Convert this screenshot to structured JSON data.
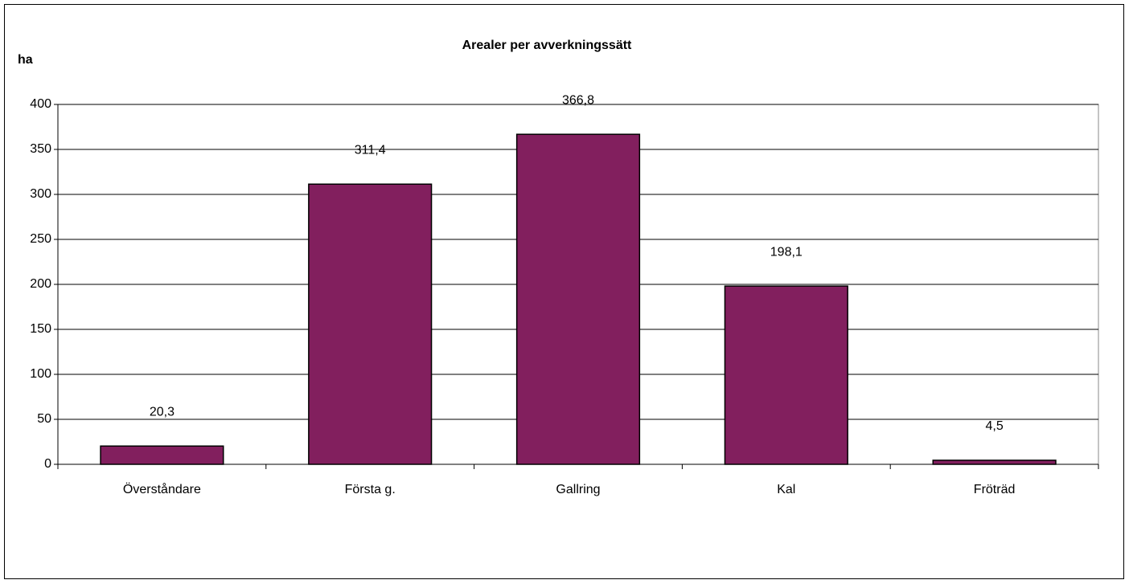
{
  "chart_data": {
    "type": "bar",
    "title": "Arealer per avverkningssätt",
    "y_label": "ha",
    "categories": [
      "Överståndare",
      "Första g.",
      "Gallring",
      "Kal",
      "Fröträd"
    ],
    "values": [
      20.3,
      311.4,
      366.8,
      198.1,
      4.5
    ],
    "value_labels": [
      "20,3",
      "311,4",
      "366,8",
      "198,1",
      "4,5"
    ],
    "color": "#821f5e",
    "ylim": [
      0,
      400
    ],
    "yticks": [
      0,
      50,
      100,
      150,
      200,
      250,
      300,
      350,
      400
    ],
    "grid": true
  }
}
